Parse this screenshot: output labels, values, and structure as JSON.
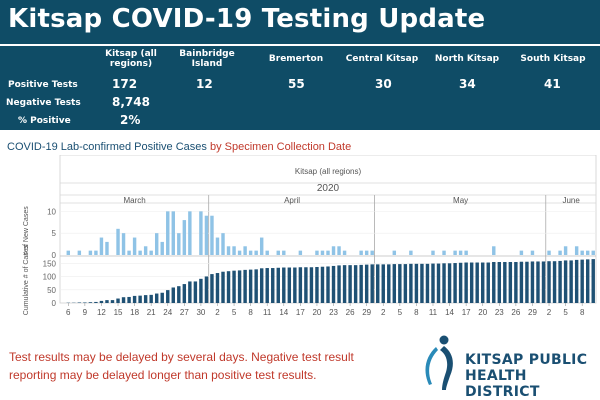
{
  "header": {
    "title": "Kitsap COVID-19 Testing Update"
  },
  "summary_table": {
    "columns": [
      "Kitsap (all regions)",
      "Bainbridge Island",
      "Bremerton",
      "Central Kitsap",
      "North Kitsap",
      "South Kitsap"
    ],
    "rows": [
      {
        "label": "Positive Tests",
        "values": [
          "172",
          "12",
          "55",
          "30",
          "34",
          "41"
        ]
      },
      {
        "label": "Negative Tests",
        "values": [
          "8,748",
          "",
          "",
          "",
          "",
          ""
        ]
      },
      {
        "label": "% Positive",
        "values": [
          "2%",
          "",
          "",
          "",
          "",
          ""
        ]
      }
    ]
  },
  "chart_subtitle": {
    "part1": "COVID-19 Lab-confirmed Positive Cases",
    "part2": " by Specimen Collection Date"
  },
  "chart_data": {
    "type": "bar",
    "title": "Kitsap (all regions)",
    "year": "2020",
    "months": [
      "March",
      "April",
      "May",
      "June"
    ],
    "x_tick_labels": [
      "6",
      "9",
      "12",
      "15",
      "18",
      "21",
      "24",
      "27",
      "30",
      "2",
      "5",
      "8",
      "11",
      "14",
      "17",
      "20",
      "23",
      "26",
      "29",
      "2",
      "5",
      "8",
      "11",
      "14",
      "17",
      "20",
      "23",
      "26",
      "29",
      "2",
      "5",
      "8"
    ],
    "start_date": "2020-03-05",
    "series": [
      {
        "name": "# of New Cases",
        "ylabel": "# of New Cases",
        "ylim": [
          0,
          11
        ],
        "y_ticks": [
          0,
          5,
          10
        ],
        "values": [
          0,
          1,
          0,
          1,
          0,
          1,
          1,
          4,
          3,
          0,
          6,
          5,
          1,
          4,
          1,
          2,
          1,
          5,
          3,
          10,
          10,
          5,
          8,
          10,
          0,
          10,
          9,
          9,
          4,
          5,
          2,
          2,
          1,
          2,
          1,
          1,
          4,
          1,
          0,
          1,
          1,
          0,
          0,
          1,
          0,
          0,
          1,
          1,
          1,
          2,
          2,
          1,
          0,
          0,
          1,
          1,
          1,
          0,
          0,
          0,
          1,
          0,
          0,
          1,
          0,
          0,
          0,
          1,
          0,
          1,
          0,
          1,
          1,
          1,
          0,
          0,
          0,
          0,
          2,
          0,
          0,
          0,
          0,
          1,
          0,
          1,
          0,
          0,
          1,
          0,
          1,
          2,
          0,
          2,
          1,
          1,
          1
        ]
      },
      {
        "name": "Cumulative # of Cases",
        "ylabel": "Cumulative # of Cases",
        "ylim": [
          0,
          175
        ],
        "y_ticks": [
          0,
          50,
          100,
          150
        ],
        "values": [
          0,
          1,
          1,
          2,
          2,
          3,
          4,
          8,
          11,
          11,
          17,
          22,
          23,
          27,
          28,
          30,
          31,
          36,
          39,
          49,
          59,
          64,
          72,
          82,
          82,
          92,
          101,
          110,
          114,
          119,
          121,
          123,
          124,
          126,
          127,
          128,
          132,
          133,
          133,
          134,
          135,
          135,
          135,
          136,
          136,
          136,
          137,
          138,
          139,
          141,
          143,
          144,
          144,
          144,
          145,
          146,
          147,
          147,
          147,
          147,
          148,
          148,
          148,
          149,
          149,
          149,
          149,
          150,
          150,
          151,
          151,
          152,
          153,
          154,
          154,
          154,
          154,
          154,
          156,
          156,
          156,
          156,
          156,
          157,
          157,
          158,
          158,
          158,
          159,
          159,
          160,
          162,
          162,
          164,
          165,
          166,
          167
        ]
      }
    ],
    "bar_color": "#8fc3e6",
    "cumulative_bar_color": "#1f5174",
    "grid": true
  },
  "footnote": "Test results may be delayed by several days. Negative test result reporting may be delayed longer than positive test results.",
  "logo": {
    "line1": "KITSAP PUBLIC",
    "line2": "HEALTH DISTRICT"
  },
  "colors": {
    "banner": "#0f4c66",
    "accent_red": "#c0392b",
    "brand_blue": "#1a4f72"
  }
}
